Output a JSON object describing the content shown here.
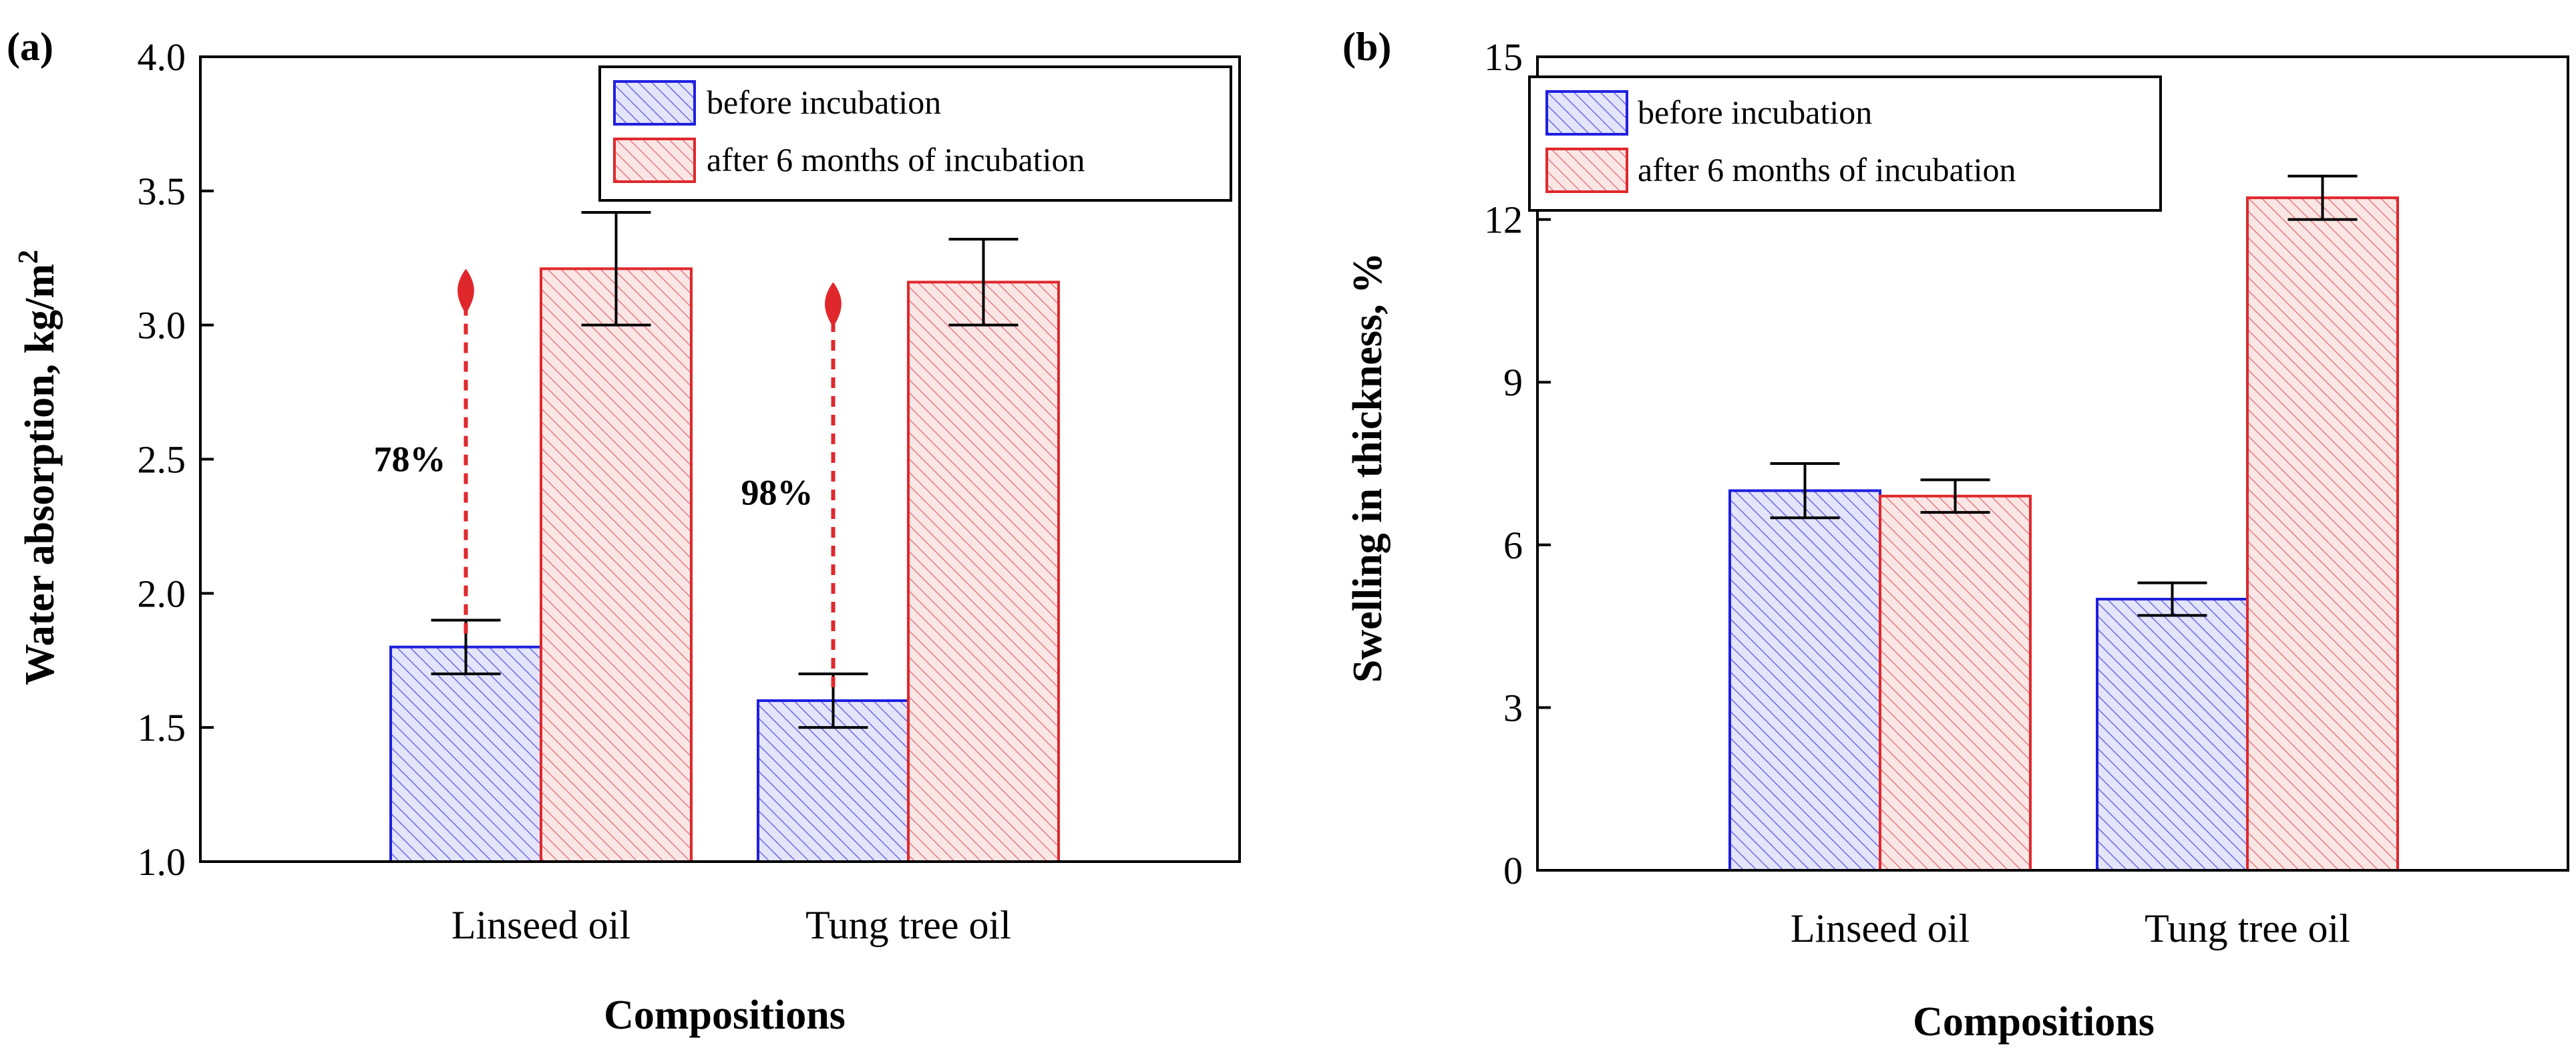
{
  "chart_data": [
    {
      "type": "bar",
      "panel_label": "(a)",
      "categories": [
        "Linseed oil",
        "Tung tree oil"
      ],
      "series": [
        {
          "name": "before incubation",
          "values": [
            1.8,
            1.6
          ],
          "errors": [
            0.1,
            0.1
          ],
          "color": "#1f1fe0"
        },
        {
          "name": "after 6 months of incubation",
          "values": [
            3.21,
            3.16
          ],
          "errors": [
            0.21,
            0.16
          ],
          "color": "#e0282c"
        }
      ],
      "ylabel": "Water absorption, kg/m",
      "ylabel_sup": "2",
      "xlabel": "Compositions",
      "ylim": [
        1.0,
        4.0
      ],
      "yticks": [
        "1.0",
        "1.5",
        "2.0",
        "2.5",
        "3.0",
        "3.5",
        "4.0"
      ],
      "ytick_values": [
        1.0,
        1.5,
        2.0,
        2.5,
        3.0,
        3.5,
        4.0
      ],
      "legend_position": "top-right",
      "annotations": [
        {
          "text": "78%",
          "category_index": 0,
          "from": 1.8,
          "to": 3.21
        },
        {
          "text": "98%",
          "category_index": 1,
          "from": 1.6,
          "to": 3.16
        }
      ]
    },
    {
      "type": "bar",
      "panel_label": "(b)",
      "categories": [
        "Linseed oil",
        "Tung tree oil"
      ],
      "series": [
        {
          "name": "before incubation",
          "values": [
            7.0,
            5.0
          ],
          "errors": [
            0.5,
            0.3
          ],
          "color": "#1f1fe0"
        },
        {
          "name": "after 6 months of incubation",
          "values": [
            6.9,
            12.4
          ],
          "errors": [
            0.3,
            0.4
          ],
          "color": "#e0282c"
        }
      ],
      "ylabel": "Swelling in thickness, %",
      "xlabel": "Compositions",
      "ylim": [
        0,
        15
      ],
      "yticks": [
        "0",
        "3",
        "6",
        "9",
        "12",
        "15"
      ],
      "ytick_values": [
        0,
        3,
        6,
        9,
        12,
        15
      ],
      "legend_position": "top-left"
    }
  ]
}
